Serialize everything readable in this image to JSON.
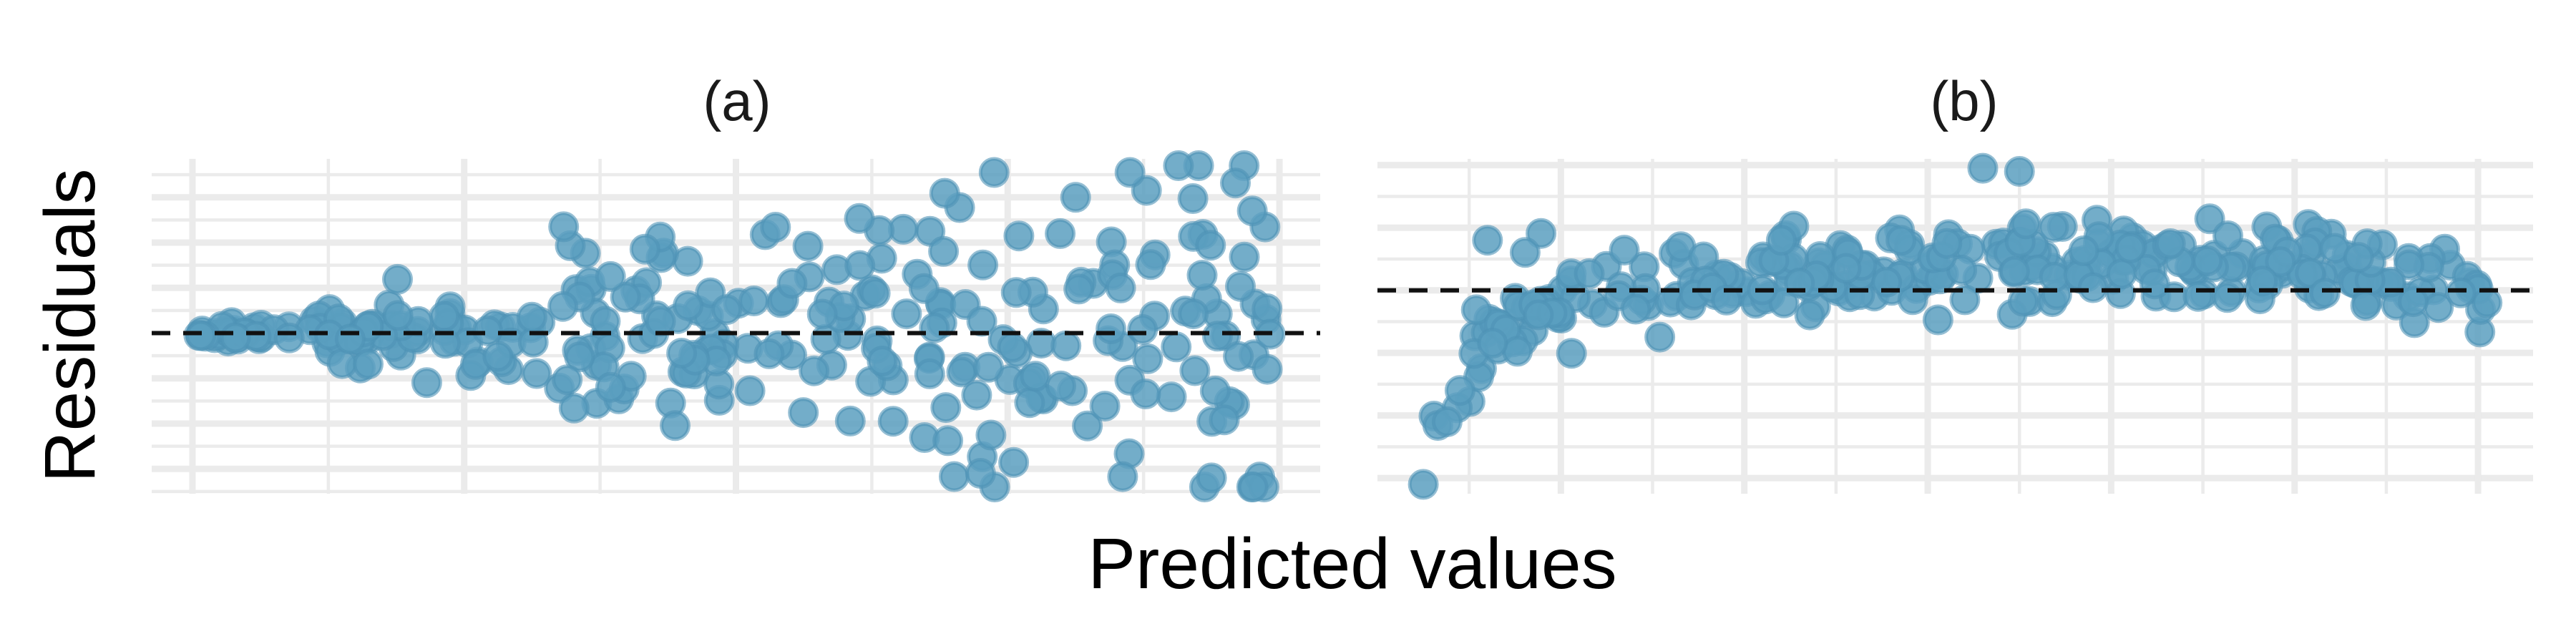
{
  "chart_data": [
    {
      "type": "scatter",
      "title": "(a)",
      "xlabel": "Predicted values",
      "ylabel": "Residuals",
      "xlim": [
        -0.15,
        4.15
      ],
      "ylim": [
        -3.55,
        3.85
      ],
      "x_major_ticks": [
        0,
        1,
        2,
        3,
        4
      ],
      "x_minor_ticks": [
        0.5,
        1.5,
        2.5,
        3.5
      ],
      "y_major_ticks": [
        -3,
        -2,
        -1,
        1,
        2,
        3
      ],
      "y_minor_ticks": [
        -3.5,
        -2.5,
        -1.5,
        -0.5,
        0.5,
        1.5,
        2.5,
        3.5
      ],
      "reference_line": 0,
      "grid": true,
      "point_color": "#5b9fc0",
      "pattern": "fan",
      "n_points": 300,
      "seed": 7,
      "outliers": [
        [
          2.95,
          3.55
        ],
        [
          3.45,
          3.55
        ],
        [
          3.25,
          3.0
        ],
        [
          3.9,
          2.7
        ],
        [
          3.75,
          -3.2
        ],
        [
          2.9,
          -3.1
        ]
      ]
    },
    {
      "type": "scatter",
      "title": "(b)",
      "xlabel": "Predicted values",
      "ylabel": "Residuals",
      "xlim": [
        0,
        6.3
      ],
      "ylim": [
        -3.25,
        2.1
      ],
      "x_major_ticks": [
        1,
        2,
        3,
        4,
        5,
        6
      ],
      "x_minor_ticks": [
        0.5,
        1.5,
        2.5,
        3.5,
        4.5,
        5.5
      ],
      "y_major_ticks": [
        -3,
        -2,
        -1,
        0,
        1,
        2
      ],
      "y_minor_ticks": [
        -2.5,
        -1.5,
        -0.5,
        0.5,
        1.5
      ],
      "reference_line": 0,
      "grid": true,
      "point_color": "#5b9fc0",
      "pattern": "curved",
      "n_points": 300,
      "seed": 11,
      "outliers": [
        [
          0.25,
          -3.1
        ],
        [
          0.38,
          -2.1
        ],
        [
          0.45,
          -1.6
        ],
        [
          3.3,
          1.95
        ],
        [
          3.5,
          1.9
        ],
        [
          0.6,
          0.8
        ]
      ]
    }
  ]
}
